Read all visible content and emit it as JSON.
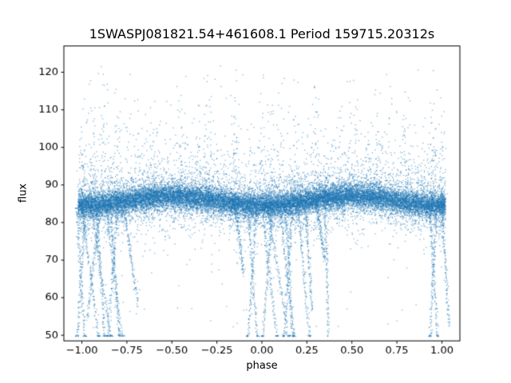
{
  "chart_data": {
    "type": "scatter",
    "title": "1SWASPJ081821.54+461608.1 Period 159715.20312s",
    "xlabel": "phase",
    "ylabel": "flux",
    "xlim": [
      -1.1,
      1.1
    ],
    "ylim": [
      48.5,
      127
    ],
    "xtick_vals": [
      -1.0,
      -0.75,
      -0.5,
      -0.25,
      0.0,
      0.25,
      0.5,
      0.75,
      1.0
    ],
    "xtick_labels": [
      "−1.00",
      "−0.75",
      "−0.50",
      "−0.25",
      "0.00",
      "0.25",
      "0.50",
      "0.75",
      "1.00"
    ],
    "ytick_vals": [
      50,
      60,
      70,
      80,
      90,
      100,
      110,
      120
    ],
    "ytick_labels": [
      "50",
      "60",
      "70",
      "80",
      "90",
      "100",
      "110",
      "120"
    ],
    "point_color": "#1f77b4",
    "point_alpha": 0.55,
    "axis_color": "#000000",
    "background": "#ffffff",
    "description": "Phase-folded SuperWASP light curve: dense flux band near 85 (slightly higher ~87 at phase ±0.5, lower ~84.5 near 0 and ±1), sparse halo of outliers up to ~123 and down to ~70, and eclipse-like trails descending to the flux≈50 floor near phases −1.0…−0.77, −0.08…0.24, 0.35 and 0.93…1.0, with short horizontal dash clusters at flux≈50.",
    "seed": 7,
    "band": {
      "base": 85.8,
      "amp": 1.2,
      "core_n": 15000,
      "core_sigma": 1.5,
      "mid_n": 5000,
      "mid_sigma": 3.2,
      "low_n": 900,
      "low_spread": 6,
      "high_n": 1600,
      "high_spread": 9,
      "high_max": 123.5,
      "stray_n": 200,
      "stray_min": 52,
      "stray_max": 122
    },
    "columns": [
      -1.0,
      -0.95,
      -0.88,
      -0.8,
      -0.6,
      -0.45,
      -0.3,
      -0.15,
      0.0,
      0.05,
      0.1,
      0.18,
      0.3,
      0.5,
      0.65,
      0.8,
      0.95,
      1.0
    ],
    "column_n": 40,
    "floor": 49.7,
    "trails": [
      {
        "x": -1.03,
        "drift": 0.05,
        "depth": 46
      },
      {
        "x": -1.0,
        "drift": 0.1,
        "depth": 46
      },
      {
        "x": -0.98,
        "drift": -0.05,
        "depth": 46
      },
      {
        "x": -0.95,
        "drift": 0.12,
        "depth": 46
      },
      {
        "x": -0.92,
        "drift": 0.05,
        "depth": 46
      },
      {
        "x": -0.9,
        "drift": -0.07,
        "depth": 54
      },
      {
        "x": -0.87,
        "drift": 0.1,
        "depth": 46
      },
      {
        "x": -0.84,
        "drift": 0.05,
        "depth": 46
      },
      {
        "x": -0.8,
        "drift": -0.06,
        "depth": 46
      },
      {
        "x": -0.77,
        "drift": 0.08,
        "depth": 58
      },
      {
        "x": -0.15,
        "drift": 0.05,
        "depth": 66
      },
      {
        "x": -0.08,
        "drift": 0.06,
        "depth": 46
      },
      {
        "x": -0.03,
        "drift": -0.05,
        "depth": 46
      },
      {
        "x": 0.0,
        "drift": 0.09,
        "depth": 46
      },
      {
        "x": 0.03,
        "drift": 0.13,
        "depth": 46
      },
      {
        "x": 0.06,
        "drift": -0.06,
        "depth": 46
      },
      {
        "x": 0.1,
        "drift": 0.08,
        "depth": 46
      },
      {
        "x": 0.13,
        "drift": 0.05,
        "depth": 46
      },
      {
        "x": 0.17,
        "drift": -0.05,
        "depth": 46
      },
      {
        "x": 0.2,
        "drift": 0.07,
        "depth": 46
      },
      {
        "x": 0.24,
        "drift": 0.04,
        "depth": 56
      },
      {
        "x": 0.3,
        "drift": 0.05,
        "depth": 70
      },
      {
        "x": 0.35,
        "drift": 0.02,
        "depth": 49
      },
      {
        "x": 0.93,
        "drift": 0.05,
        "depth": 46
      },
      {
        "x": 0.97,
        "drift": -0.04,
        "depth": 46
      },
      {
        "x": 1.0,
        "drift": 0.04,
        "depth": 52
      }
    ],
    "trail_n": 140
  }
}
